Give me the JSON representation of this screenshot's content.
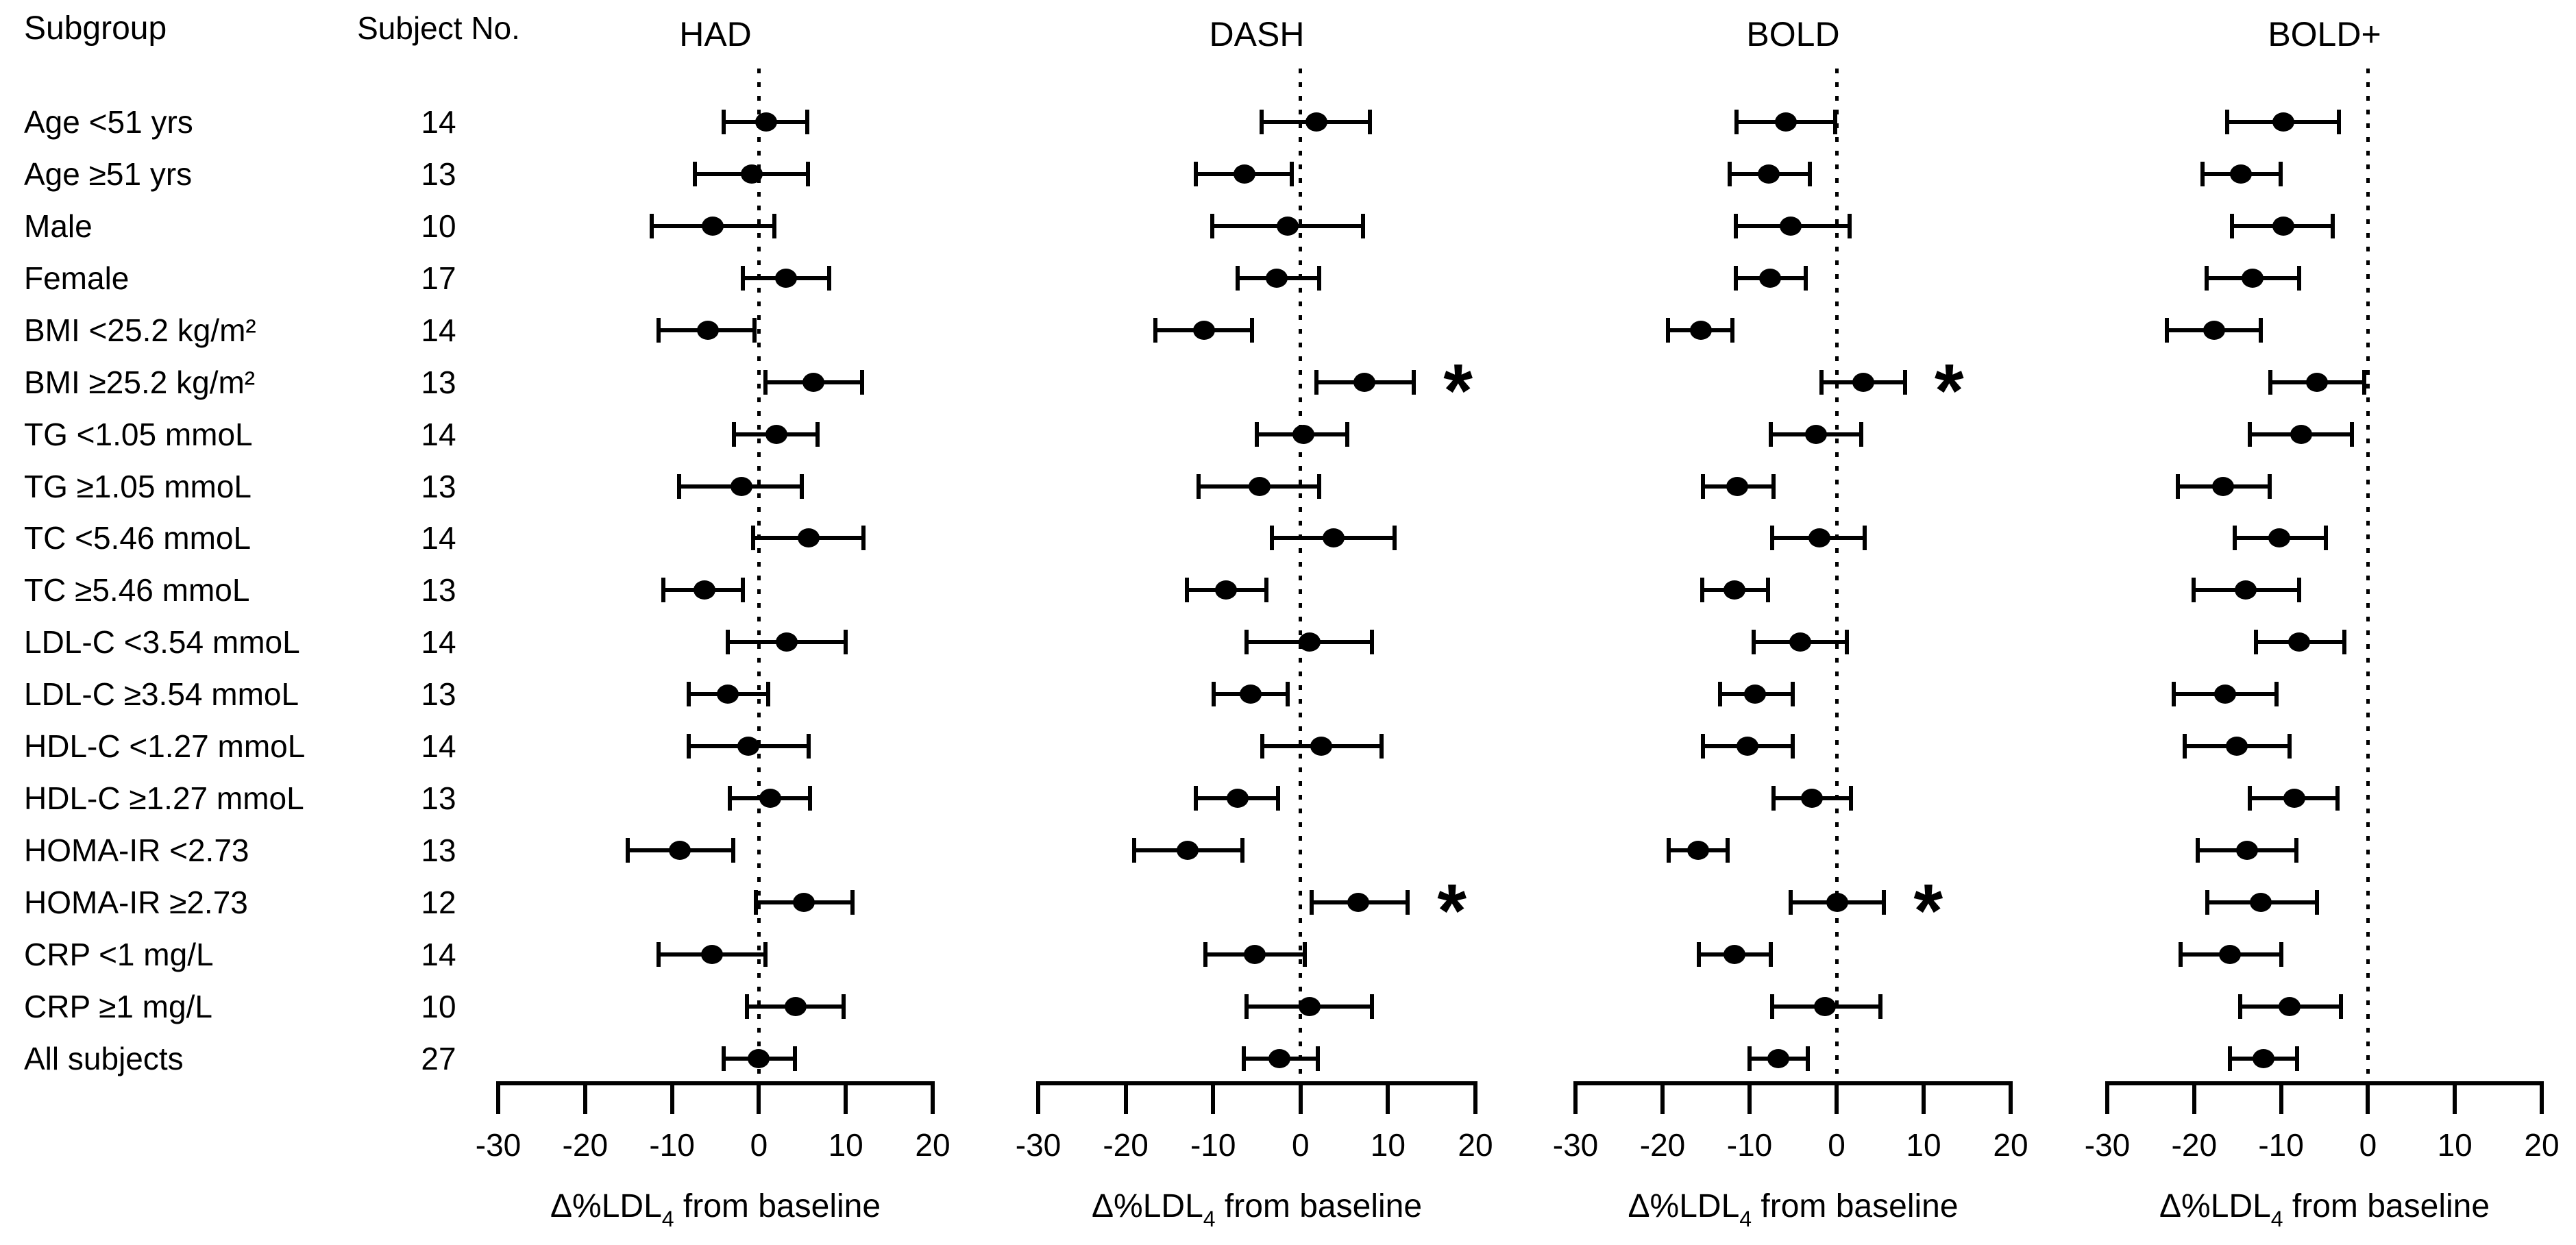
{
  "figure": {
    "background": "#ffffff",
    "foreground": "#000000"
  },
  "table": {
    "col1_header": "Subgroup",
    "col2_header": "Subject No."
  },
  "chart_data": {
    "type": "forest",
    "title": "",
    "xlabel": "Δ%LDL4 from baseline",
    "xlabel_parts": {
      "pre": "Δ%LDL",
      "sub": "4",
      "post": " from baseline"
    },
    "xlim": [
      -30,
      20
    ],
    "xticks": [
      -30,
      -20,
      -10,
      0,
      10,
      20
    ],
    "zero_reference": 0,
    "significance_marker": "*",
    "grid": "none",
    "categories": [
      "Age <51 yrs",
      "Age ≥51 yrs",
      "Male",
      "Female",
      "BMI <25.2 kg/m²",
      "BMI ≥25.2 kg/m²",
      "TG <1.05 mmoL",
      "TG ≥1.05 mmoL",
      "TC <5.46 mmoL",
      "TC ≥5.46 mmoL",
      "LDL-C <3.54 mmoL",
      "LDL-C ≥3.54 mmoL",
      "HDL-C <1.27 mmoL",
      "HDL-C ≥1.27 mmoL",
      "HOMA-IR <2.73",
      "HOMA-IR ≥2.73",
      "CRP <1 mg/L",
      "CRP ≥1 mg/L",
      "All subjects"
    ],
    "subject_no": [
      "14",
      "13",
      "10",
      "17",
      "14",
      "13",
      "14",
      "13",
      "14",
      "13",
      "14",
      "13",
      "14",
      "13",
      "13",
      "12",
      "14",
      "10",
      "27"
    ],
    "series": [
      {
        "name": "HAD",
        "points": [
          {
            "center": 0.8,
            "lo": -4.3,
            "hi": 5.8,
            "sig": false
          },
          {
            "center": -0.8,
            "lo": -7.6,
            "hi": 5.9,
            "sig": false
          },
          {
            "center": -5.3,
            "lo": -12.6,
            "hi": 2.0,
            "sig": false
          },
          {
            "center": 3.1,
            "lo": -2.1,
            "hi": 8.3,
            "sig": false
          },
          {
            "center": -5.9,
            "lo": -11.8,
            "hi": -0.3,
            "sig": false
          },
          {
            "center": 6.3,
            "lo": 0.5,
            "hi": 12.1,
            "sig": false
          },
          {
            "center": 2.0,
            "lo": -3.1,
            "hi": 7.0,
            "sig": false
          },
          {
            "center": -2.0,
            "lo": -9.4,
            "hi": 5.2,
            "sig": false
          },
          {
            "center": 5.7,
            "lo": -0.9,
            "hi": 12.3,
            "sig": false
          },
          {
            "center": -6.3,
            "lo": -11.2,
            "hi": -1.6,
            "sig": false
          },
          {
            "center": 3.2,
            "lo": -3.8,
            "hi": 10.2,
            "sig": false
          },
          {
            "center": -3.6,
            "lo": -8.3,
            "hi": 1.3,
            "sig": false
          },
          {
            "center": -1.2,
            "lo": -8.3,
            "hi": 6.0,
            "sig": false
          },
          {
            "center": 1.3,
            "lo": -3.6,
            "hi": 6.1,
            "sig": false
          },
          {
            "center": -9.1,
            "lo": -15.3,
            "hi": -2.7,
            "sig": false
          },
          {
            "center": 5.2,
            "lo": -0.6,
            "hi": 11.0,
            "sig": false
          },
          {
            "center": -5.4,
            "lo": -11.8,
            "hi": 1.0,
            "sig": false
          },
          {
            "center": 4.2,
            "lo": -1.6,
            "hi": 10.0,
            "sig": false
          },
          {
            "center": 0.0,
            "lo": -4.3,
            "hi": 4.4,
            "sig": false
          }
        ]
      },
      {
        "name": "DASH",
        "points": [
          {
            "center": 1.8,
            "lo": -4.7,
            "hi": 8.2,
            "sig": false
          },
          {
            "center": -6.4,
            "lo": -12.2,
            "hi": -0.8,
            "sig": false
          },
          {
            "center": -1.5,
            "lo": -10.3,
            "hi": 7.4,
            "sig": false
          },
          {
            "center": -2.7,
            "lo": -7.4,
            "hi": 2.4,
            "sig": false
          },
          {
            "center": -11.0,
            "lo": -16.8,
            "hi": -5.3,
            "sig": false
          },
          {
            "center": 7.3,
            "lo": 1.6,
            "hi": 13.2,
            "sig": true
          },
          {
            "center": 0.3,
            "lo": -5.2,
            "hi": 5.6,
            "sig": false
          },
          {
            "center": -4.7,
            "lo": -11.9,
            "hi": 2.4,
            "sig": false
          },
          {
            "center": 3.8,
            "lo": -3.5,
            "hi": 11.0,
            "sig": false
          },
          {
            "center": -8.5,
            "lo": -13.2,
            "hi": -3.7,
            "sig": false
          },
          {
            "center": 1.0,
            "lo": -6.4,
            "hi": 8.4,
            "sig": false
          },
          {
            "center": -5.7,
            "lo": -10.2,
            "hi": -1.2,
            "sig": false
          },
          {
            "center": 2.4,
            "lo": -4.6,
            "hi": 9.5,
            "sig": false
          },
          {
            "center": -7.2,
            "lo": -12.2,
            "hi": -2.3,
            "sig": false
          },
          {
            "center": -12.9,
            "lo": -19.3,
            "hi": -6.4,
            "sig": false
          },
          {
            "center": 6.6,
            "lo": 1.0,
            "hi": 12.5,
            "sig": true
          },
          {
            "center": -5.2,
            "lo": -11.1,
            "hi": 0.7,
            "sig": false
          },
          {
            "center": 1.0,
            "lo": -6.4,
            "hi": 8.4,
            "sig": false
          },
          {
            "center": -2.4,
            "lo": -6.7,
            "hi": 2.2,
            "sig": false
          }
        ]
      },
      {
        "name": "BOLD",
        "points": [
          {
            "center": -5.8,
            "lo": -11.7,
            "hi": 0.1,
            "sig": false
          },
          {
            "center": -7.8,
            "lo": -12.5,
            "hi": -2.8,
            "sig": false
          },
          {
            "center": -5.3,
            "lo": -11.8,
            "hi": 1.7,
            "sig": false
          },
          {
            "center": -7.6,
            "lo": -11.8,
            "hi": -3.3,
            "sig": false
          },
          {
            "center": -15.6,
            "lo": -19.6,
            "hi": -11.7,
            "sig": false
          },
          {
            "center": 3.1,
            "lo": -2.0,
            "hi": 8.1,
            "sig": true
          },
          {
            "center": -2.4,
            "lo": -7.8,
            "hi": 3.1,
            "sig": false
          },
          {
            "center": -11.4,
            "lo": -15.6,
            "hi": -7.0,
            "sig": false
          },
          {
            "center": -2.0,
            "lo": -7.6,
            "hi": 3.5,
            "sig": false
          },
          {
            "center": -11.7,
            "lo": -15.7,
            "hi": -7.6,
            "sig": false
          },
          {
            "center": -4.2,
            "lo": -9.8,
            "hi": 1.4,
            "sig": false
          },
          {
            "center": -9.4,
            "lo": -13.6,
            "hi": -4.8,
            "sig": false
          },
          {
            "center": -10.2,
            "lo": -15.6,
            "hi": -4.8,
            "sig": false
          },
          {
            "center": -2.8,
            "lo": -7.5,
            "hi": 1.9,
            "sig": false
          },
          {
            "center": -15.9,
            "lo": -19.5,
            "hi": -12.3,
            "sig": false
          },
          {
            "center": 0.1,
            "lo": -5.5,
            "hi": 5.7,
            "sig": true
          },
          {
            "center": -11.7,
            "lo": -16.1,
            "hi": -7.3,
            "sig": false
          },
          {
            "center": -1.3,
            "lo": -7.6,
            "hi": 5.3,
            "sig": false
          },
          {
            "center": -6.7,
            "lo": -10.2,
            "hi": -3.1,
            "sig": false
          }
        ]
      },
      {
        "name": "BOLD+",
        "points": [
          {
            "center": -9.7,
            "lo": -16.4,
            "hi": -3.1,
            "sig": false
          },
          {
            "center": -14.6,
            "lo": -19.3,
            "hi": -9.8,
            "sig": false
          },
          {
            "center": -9.7,
            "lo": -15.9,
            "hi": -3.8,
            "sig": false
          },
          {
            "center": -13.3,
            "lo": -18.8,
            "hi": -7.7,
            "sig": false
          },
          {
            "center": -17.7,
            "lo": -23.4,
            "hi": -12.1,
            "sig": false
          },
          {
            "center": -5.9,
            "lo": -11.5,
            "hi": -0.2,
            "sig": false
          },
          {
            "center": -7.7,
            "lo": -13.8,
            "hi": -1.6,
            "sig": false
          },
          {
            "center": -16.7,
            "lo": -22.1,
            "hi": -11.1,
            "sig": false
          },
          {
            "center": -10.2,
            "lo": -15.6,
            "hi": -4.6,
            "sig": false
          },
          {
            "center": -14.1,
            "lo": -20.3,
            "hi": -7.7,
            "sig": false
          },
          {
            "center": -7.9,
            "lo": -13.1,
            "hi": -2.5,
            "sig": false
          },
          {
            "center": -16.4,
            "lo": -22.6,
            "hi": -10.3,
            "sig": false
          },
          {
            "center": -15.1,
            "lo": -21.3,
            "hi": -8.8,
            "sig": false
          },
          {
            "center": -8.5,
            "lo": -13.8,
            "hi": -3.3,
            "sig": false
          },
          {
            "center": -13.9,
            "lo": -19.8,
            "hi": -8.0,
            "sig": false
          },
          {
            "center": -12.3,
            "lo": -18.7,
            "hi": -5.6,
            "sig": false
          },
          {
            "center": -15.9,
            "lo": -21.8,
            "hi": -9.7,
            "sig": false
          },
          {
            "center": -9.0,
            "lo": -14.9,
            "hi": -2.9,
            "sig": false
          },
          {
            "center": -12.0,
            "lo": -16.1,
            "hi": -7.9,
            "sig": false
          }
        ]
      }
    ]
  }
}
